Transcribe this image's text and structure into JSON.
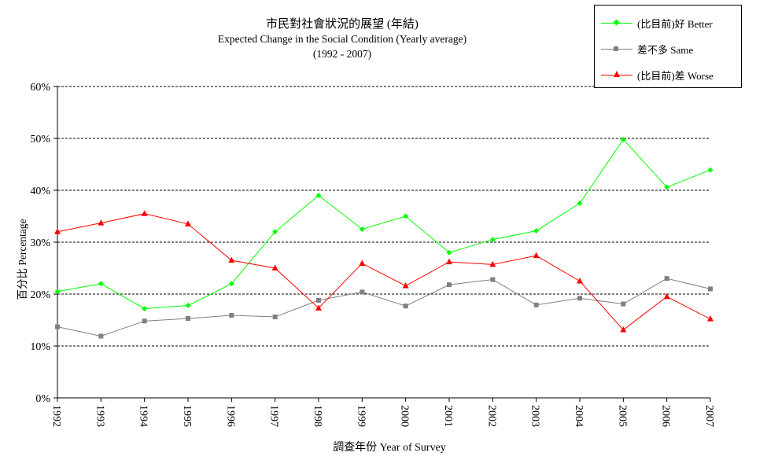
{
  "chart_data": {
    "type": "line",
    "title": "市民對社會狀況的展望 (年結)",
    "subtitle": "Expected Change in the Social Condition  (Yearly average)",
    "subtitle2": "(1992 - 2007)",
    "xlabel": "調查年份 Year of Survey",
    "ylabel": "百分比 Percentage",
    "categories": [
      "1992",
      "1993",
      "1994",
      "1995",
      "1996",
      "1997",
      "1998",
      "1999",
      "2000",
      "2001",
      "2002",
      "2003",
      "2004",
      "2005",
      "2006",
      "2007"
    ],
    "ylim": [
      0,
      60
    ],
    "yticks": [
      "0%",
      "10%",
      "20%",
      "30%",
      "40%",
      "50%",
      "60%"
    ],
    "grid": true,
    "legend_position": "top-right",
    "series": [
      {
        "name": "(比目前)好 Better",
        "color": "#00ff00",
        "marker": "diamond",
        "values": [
          20.5,
          22.0,
          17.2,
          17.8,
          22.0,
          32.0,
          39.0,
          32.5,
          35.0,
          28.0,
          30.5,
          32.2,
          37.5,
          49.8,
          40.6,
          43.9
        ]
      },
      {
        "name": "差不多 Same",
        "color": "#808080",
        "marker": "square",
        "values": [
          13.7,
          11.9,
          14.8,
          15.3,
          15.9,
          15.6,
          18.8,
          20.4,
          17.7,
          21.8,
          22.8,
          17.9,
          19.2,
          18.1,
          23.0,
          21.0
        ]
      },
      {
        "name": "(比目前)差 Worse",
        "color": "#ff0000",
        "marker": "triangle",
        "values": [
          32.0,
          33.7,
          35.5,
          33.5,
          26.5,
          25.0,
          17.3,
          25.9,
          21.6,
          26.2,
          25.7,
          27.4,
          22.5,
          13.1,
          19.5,
          15.2
        ]
      }
    ]
  }
}
